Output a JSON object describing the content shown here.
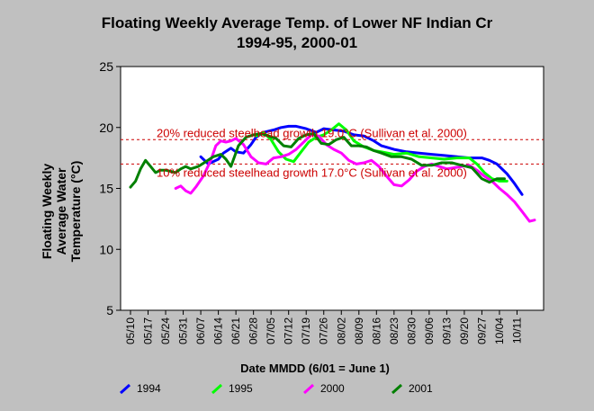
{
  "chart_data": {
    "type": "line",
    "title": "Floating Weekly Average Temp. of Lower NF Indian Cr",
    "subtitle": "1994-95, 2000-01",
    "xlabel": "Date MMDD (6/01 = June 1)",
    "ylabel_lines": [
      "Floating Weekly",
      "Average Water",
      "Temperature (°C)"
    ],
    "ylim": [
      5,
      25
    ],
    "yticks": [
      5,
      10,
      15,
      20,
      25
    ],
    "x_ticks": [
      "05/10",
      "05/17",
      "05/24",
      "05/31",
      "06/07",
      "06/14",
      "06/21",
      "06/28",
      "07/05",
      "07/12",
      "07/19",
      "07/26",
      "08/02",
      "08/09",
      "08/16",
      "08/23",
      "08/30",
      "09/06",
      "09/13",
      "09/20",
      "09/27",
      "10/04",
      "10/11"
    ],
    "x_range_days": [
      0,
      161
    ],
    "thresholds": [
      {
        "label": "20% reduced steelhead growth 19.0°C (Sullivan et al. 2000)",
        "value": 19.0,
        "color": "#cc0000"
      },
      {
        "label": "10% reduced steelhead growth 17.0°C (Sullivan et al. 2000)",
        "value": 17.0,
        "color": "#cc0000"
      }
    ],
    "series": [
      {
        "name": "1994",
        "color": "#0000ff",
        "x": [
          28,
          31,
          33,
          35,
          37,
          40,
          42,
          45,
          48,
          50,
          53,
          57,
          60,
          63,
          66,
          70,
          74,
          77,
          81,
          85,
          89,
          93,
          97,
          100,
          105,
          110,
          115,
          120,
          125,
          130,
          135,
          140,
          143,
          146,
          150,
          153,
          156
        ],
        "y": [
          17.6,
          17.0,
          17.2,
          17.4,
          17.9,
          18.3,
          18.0,
          17.9,
          18.6,
          19.2,
          19.6,
          19.8,
          20.0,
          20.1,
          20.1,
          19.9,
          19.6,
          19.9,
          19.8,
          19.7,
          19.4,
          19.3,
          18.9,
          18.5,
          18.2,
          18.0,
          17.9,
          17.8,
          17.7,
          17.6,
          17.5,
          17.5,
          17.3,
          17.0,
          16.2,
          15.4,
          14.5
        ]
      },
      {
        "name": "1995",
        "color": "#00ff00",
        "x": [
          50,
          53,
          56,
          59,
          62,
          65,
          68,
          71,
          74,
          77,
          80,
          83,
          86,
          89,
          93,
          97,
          100,
          105,
          110,
          115,
          120,
          125,
          130,
          135,
          138,
          141,
          144,
          147,
          150
        ],
        "y": [
          19.3,
          19.6,
          19.0,
          18.0,
          17.4,
          17.2,
          18.0,
          18.8,
          19.2,
          19.4,
          19.8,
          20.3,
          19.8,
          18.9,
          18.4,
          18.1,
          18.0,
          17.8,
          17.9,
          17.6,
          17.5,
          17.4,
          17.5,
          17.5,
          17.0,
          16.3,
          15.8,
          15.6,
          15.6
        ]
      },
      {
        "name": "2000",
        "color": "#ff00ff",
        "x": [
          18,
          20,
          22,
          24,
          26,
          29,
          32,
          34,
          36,
          38,
          40,
          42,
          45,
          48,
          51,
          54,
          57,
          60,
          63,
          66,
          69,
          72,
          75,
          78,
          81,
          84,
          87,
          90,
          93,
          96,
          99,
          102,
          105,
          108,
          111,
          114,
          117,
          120,
          123,
          126,
          129,
          132,
          135,
          138,
          141,
          144,
          147,
          150,
          153,
          156,
          159,
          161
        ],
        "y": [
          15.0,
          15.2,
          14.8,
          14.6,
          15.1,
          16.0,
          17.3,
          18.5,
          18.9,
          18.8,
          18.9,
          19.1,
          18.6,
          17.6,
          17.1,
          17.0,
          17.5,
          17.6,
          17.8,
          18.2,
          18.8,
          19.4,
          19.3,
          18.6,
          18.2,
          17.9,
          17.3,
          17.0,
          17.1,
          17.3,
          16.8,
          16.0,
          15.3,
          15.2,
          15.7,
          16.4,
          16.8,
          17.0,
          16.8,
          16.6,
          16.7,
          16.8,
          16.9,
          16.5,
          16.0,
          15.6,
          15.0,
          14.5,
          13.9,
          13.1,
          12.3,
          12.4
        ]
      },
      {
        "name": "2001",
        "color": "#008000",
        "x": [
          0,
          2,
          4,
          6,
          8,
          10,
          12,
          14,
          16,
          18,
          20,
          22,
          24,
          27,
          30,
          33,
          36,
          38,
          40,
          43,
          46,
          49,
          52,
          55,
          58,
          61,
          64,
          67,
          70,
          73,
          76,
          79,
          82,
          85,
          88,
          91,
          94,
          97,
          100,
          104,
          108,
          112,
          116,
          120,
          124,
          128,
          132,
          136,
          140,
          143,
          146,
          149
        ],
        "y": [
          15.1,
          15.6,
          16.6,
          17.3,
          16.8,
          16.3,
          16.5,
          16.5,
          16.4,
          16.3,
          16.6,
          16.8,
          16.6,
          16.8,
          17.2,
          17.6,
          17.8,
          17.4,
          16.8,
          18.5,
          19.2,
          19.4,
          19.5,
          19.3,
          19.1,
          18.5,
          18.4,
          19.1,
          19.4,
          19.5,
          18.7,
          18.6,
          19.0,
          19.2,
          18.5,
          18.5,
          18.4,
          18.1,
          17.9,
          17.6,
          17.6,
          17.4,
          16.9,
          16.9,
          17.1,
          17.1,
          16.9,
          16.7,
          15.8,
          15.5,
          15.8,
          15.8
        ]
      }
    ]
  }
}
